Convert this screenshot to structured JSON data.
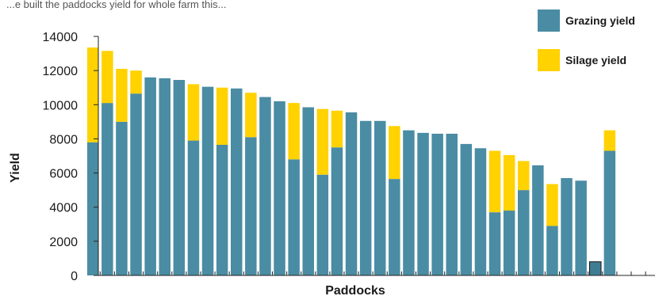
{
  "top_caption": "...e built the paddocks yield for whole farm this...",
  "colors": {
    "grazing": "#4a8ca3",
    "silage": "#ffd200",
    "outlier": "#3f7d92",
    "axis": "#222222"
  },
  "chart_data": {
    "type": "bar",
    "stacked": true,
    "xlabel": "Paddocks",
    "ylabel": "Yield",
    "ylim": [
      0,
      14000
    ],
    "yticks": [
      0,
      2000,
      4000,
      6000,
      8000,
      10000,
      12000,
      14000
    ],
    "grid": false,
    "legend_position": "top-right",
    "series": [
      {
        "name": "Grazing yield",
        "values": [
          7800,
          10100,
          9000,
          10650,
          11600,
          11550,
          11450,
          7900,
          11050,
          7650,
          10950,
          8100,
          10450,
          10200,
          6800,
          9850,
          5900,
          7500,
          9550,
          9050,
          9050,
          5650,
          8500,
          8350,
          8300,
          8300,
          7700,
          7450,
          3700,
          3800,
          5000,
          6450,
          2900,
          5700,
          5550,
          800,
          7300
        ]
      },
      {
        "name": "Silage yield",
        "values": [
          5550,
          3050,
          3100,
          1350,
          0,
          0,
          0,
          3300,
          0,
          3350,
          0,
          2600,
          0,
          0,
          3300,
          0,
          3850,
          2150,
          0,
          0,
          0,
          3100,
          0,
          0,
          0,
          0,
          0,
          0,
          3600,
          3250,
          1700,
          0,
          2450,
          0,
          0,
          0,
          1200
        ]
      }
    ]
  }
}
